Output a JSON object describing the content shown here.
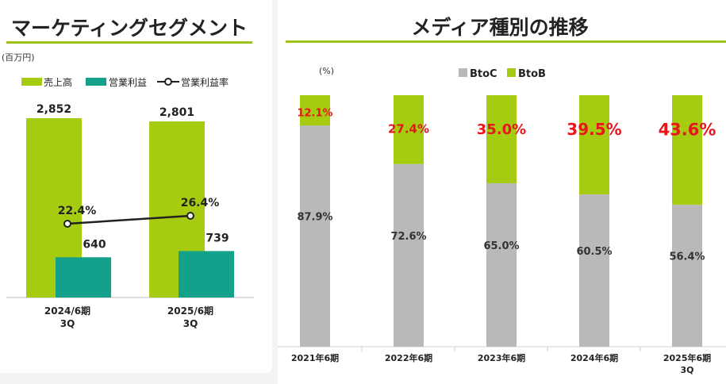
{
  "left": {
    "title": "マーケティングセグメント",
    "unit": "(百万円)",
    "legend": [
      "売上高",
      "営業利益",
      "営業利益率"
    ],
    "colors": {
      "revenue": "#a6cc12",
      "profit": "#13a18c",
      "line": "#222222"
    }
  },
  "right": {
    "title": "メディア種別の推移",
    "unit": "(%)",
    "legend": [
      "BtoC",
      "BtoB"
    ],
    "colors": {
      "btoc": "#b9b8bb",
      "btob": "#a6cc12",
      "highlight": "#e8151b"
    }
  },
  "chart_data": [
    {
      "type": "bar",
      "categories": [
        "2024/6期\n3Q",
        "2025/6期\n3Q"
      ],
      "series": [
        {
          "name": "売上高",
          "values": [
            2852,
            2801
          ],
          "labels": [
            "2,852",
            "2,801"
          ]
        },
        {
          "name": "営業利益",
          "values": [
            640,
            739
          ],
          "labels": [
            "640",
            "739"
          ]
        },
        {
          "name": "営業利益率",
          "type": "line",
          "values": [
            22.4,
            26.4
          ],
          "labels": [
            "22.4%",
            "26.4%"
          ]
        }
      ],
      "ylabel": "(百万円)"
    },
    {
      "type": "bar",
      "stacked": true,
      "categories": [
        "2021年6期",
        "2022年6期",
        "2023年6期",
        "2024年6期",
        "2025年6期\n3Q"
      ],
      "series": [
        {
          "name": "BtoC",
          "values": [
            87.9,
            72.6,
            65.0,
            60.5,
            56.4
          ],
          "labels": [
            "87.9%",
            "72.6%",
            "65.0%",
            "60.5%",
            "56.4%"
          ]
        },
        {
          "name": "BtoB",
          "values": [
            12.1,
            27.4,
            35.0,
            39.5,
            43.6
          ],
          "labels": [
            "12.1%",
            "27.4%",
            "35.0%",
            "39.5%",
            "43.6%"
          ]
        }
      ],
      "ylabel": "(%)",
      "ylim": [
        0,
        100
      ]
    }
  ]
}
